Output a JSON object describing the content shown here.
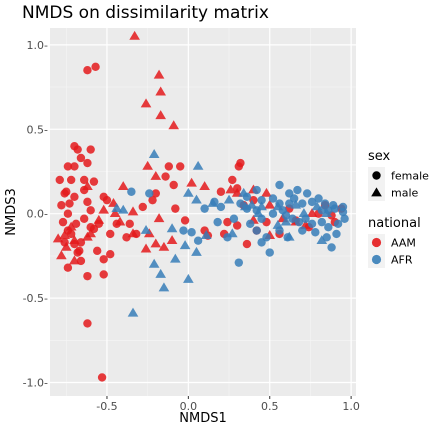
{
  "chart_data": {
    "type": "scatter",
    "title": "NMDS on dissimilarity matrix",
    "xlabel": "NMDS1",
    "ylabel": "NMDS3",
    "xlim": [
      -0.85,
      1.03
    ],
    "ylim": [
      -1.08,
      1.1
    ],
    "x_ticks": [
      -0.5,
      0.0,
      0.5,
      1.0
    ],
    "x_tick_labels": [
      "-0.5",
      "0.0",
      "0.5",
      "1.0"
    ],
    "y_ticks": [
      -1.0,
      -0.5,
      0.0,
      0.5,
      1.0
    ],
    "y_tick_labels": [
      "-1.0-",
      "-0.5-",
      "0.0-",
      "0.5-",
      "1.0-"
    ],
    "grid": true,
    "legend_position": "right",
    "legends": [
      {
        "title": "sex",
        "items": [
          {
            "label": "female",
            "shape": "circle"
          },
          {
            "label": "male",
            "shape": "triangle"
          }
        ]
      },
      {
        "title": "national",
        "items": [
          {
            "label": "AAM",
            "color": "#e41a1c"
          },
          {
            "label": "AFR",
            "color": "#377eb8"
          }
        ]
      }
    ],
    "series": [
      {
        "group": "AAM",
        "sex": "female",
        "color": "#e41a1c",
        "shape": "circle",
        "points": [
          [
            -0.53,
            -0.97
          ],
          [
            -0.62,
            -0.65
          ],
          [
            -0.52,
            -0.27
          ],
          [
            -0.56,
            -0.22
          ],
          [
            -0.68,
            -0.23
          ],
          [
            -0.66,
            -0.28
          ],
          [
            -0.72,
            -0.12
          ],
          [
            -0.76,
            -0.17
          ],
          [
            -0.74,
            -0.1
          ],
          [
            -0.77,
            -0.05
          ],
          [
            -0.74,
            0.0
          ],
          [
            -0.78,
            0.05
          ],
          [
            -0.7,
            0.1
          ],
          [
            -0.76,
            0.12
          ],
          [
            -0.72,
            0.2
          ],
          [
            -0.79,
            0.2
          ],
          [
            -0.74,
            0.28
          ],
          [
            -0.7,
            0.28
          ],
          [
            -0.66,
            0.33
          ],
          [
            -0.68,
            0.38
          ],
          [
            -0.75,
            0.13
          ],
          [
            -0.62,
            0.07
          ],
          [
            -0.64,
            0.14
          ],
          [
            -0.64,
            0.2
          ],
          [
            -0.58,
            0.19
          ],
          [
            -0.52,
            0.1
          ],
          [
            -0.5,
            0.08
          ],
          [
            -0.6,
            0.02
          ],
          [
            -0.64,
            -0.03
          ],
          [
            -0.6,
            -0.08
          ],
          [
            -0.66,
            -0.17
          ],
          [
            -0.7,
            -0.18
          ],
          [
            -0.74,
            -0.32
          ],
          [
            -0.62,
            -0.37
          ],
          [
            -0.67,
            -0.22
          ],
          [
            -0.58,
            -0.09
          ],
          [
            -0.55,
            -0.06
          ],
          [
            -0.48,
            -0.12
          ],
          [
            -0.38,
            -0.14
          ],
          [
            -0.32,
            -0.12
          ],
          [
            -0.36,
            -0.06
          ],
          [
            -0.28,
            0.04
          ],
          [
            -0.22,
            0.08
          ],
          [
            -0.2,
            0.12
          ],
          [
            -0.14,
            0.22
          ],
          [
            -0.12,
            0.28
          ],
          [
            -0.09,
            0.17
          ],
          [
            -0.05,
            0.28
          ],
          [
            -0.08,
            0.03
          ],
          [
            -0.02,
            -0.04
          ],
          [
            0.1,
            -0.1
          ],
          [
            0.12,
            -0.13
          ],
          [
            0.22,
            -0.12
          ],
          [
            0.3,
            -0.07
          ],
          [
            0.24,
            -0.05
          ],
          [
            0.34,
            0.05
          ],
          [
            0.4,
            0.08
          ],
          [
            0.3,
            0.15
          ],
          [
            0.2,
            0.13
          ],
          [
            0.27,
            0.2
          ],
          [
            0.31,
            0.28
          ],
          [
            0.32,
            0.3
          ],
          [
            0.36,
            -0.18
          ],
          [
            0.42,
            -0.1
          ],
          [
            0.48,
            -0.05
          ],
          [
            0.56,
            -0.12
          ],
          [
            0.62,
            0.03
          ],
          [
            0.66,
            -0.04
          ],
          [
            0.74,
            -0.08
          ],
          [
            0.8,
            0.0
          ],
          [
            0.84,
            0.05
          ],
          [
            0.88,
            -0.01
          ],
          [
            0.9,
            -0.05
          ],
          [
            0.94,
            0.03
          ],
          [
            -0.62,
            0.85
          ],
          [
            -0.57,
            0.87
          ],
          [
            -0.62,
            0.3
          ],
          [
            -0.7,
            0.4
          ],
          [
            -0.6,
            0.38
          ],
          [
            -0.52,
            -0.36
          ],
          [
            -0.48,
            -0.24
          ],
          [
            -0.44,
            -0.06
          ],
          [
            -0.69,
            -0.06
          ],
          [
            -0.73,
            0.06
          ]
        ]
      },
      {
        "group": "AAM",
        "sex": "male",
        "color": "#e41a1c",
        "shape": "triangle",
        "points": [
          [
            -0.33,
            1.05
          ],
          [
            -0.18,
            0.82
          ],
          [
            -0.26,
            0.65
          ],
          [
            -0.17,
            0.72
          ],
          [
            -0.17,
            0.58
          ],
          [
            -0.09,
            0.52
          ],
          [
            -0.25,
            0.28
          ],
          [
            -0.2,
            0.22
          ],
          [
            -0.4,
            0.16
          ],
          [
            -0.46,
            0.06
          ],
          [
            -0.34,
            0.01
          ],
          [
            -0.42,
            -0.05
          ],
          [
            -0.34,
            -0.12
          ],
          [
            -0.24,
            -0.12
          ],
          [
            -0.2,
            -0.18
          ],
          [
            -0.26,
            -0.21
          ],
          [
            -0.15,
            -0.2
          ],
          [
            -0.1,
            -0.16
          ],
          [
            -0.62,
            -0.14
          ],
          [
            -0.72,
            -0.08
          ],
          [
            -0.76,
            -0.13
          ],
          [
            -0.8,
            -0.15
          ],
          [
            -0.78,
            -0.25
          ],
          [
            -0.7,
            -0.16
          ],
          [
            -0.6,
            -0.12
          ],
          [
            -0.55,
            -0.04
          ],
          [
            -0.52,
            0.02
          ],
          [
            -0.62,
            0.16
          ],
          [
            -0.7,
            -0.28
          ],
          [
            0.02,
            0.18
          ],
          [
            0.1,
            0.16
          ],
          [
            0.26,
            0.14
          ],
          [
            0.3,
            0.12
          ],
          [
            0.4,
            0.14
          ],
          [
            0.48,
            0.12
          ],
          [
            0.5,
            0.05
          ],
          [
            0.4,
            -0.04
          ],
          [
            0.58,
            -0.03
          ],
          [
            0.66,
            -0.05
          ],
          [
            0.72,
            -0.07
          ],
          [
            0.76,
            0.0
          ],
          [
            0.5,
            -0.13
          ],
          [
            -0.45,
            0.0
          ],
          [
            -0.18,
            -0.03
          ],
          [
            -0.75,
            -0.2
          ]
        ]
      },
      {
        "group": "AFR",
        "sex": "female",
        "color": "#377eb8",
        "shape": "circle",
        "points": [
          [
            -0.35,
            0.13
          ],
          [
            -0.24,
            0.12
          ],
          [
            -0.03,
            -0.1
          ],
          [
            0.02,
            -0.11
          ],
          [
            0.06,
            -0.16
          ],
          [
            0.1,
            0.03
          ],
          [
            0.16,
            0.07
          ],
          [
            0.2,
            0.04
          ],
          [
            0.32,
            0.06
          ],
          [
            0.36,
            0.03
          ],
          [
            0.42,
            0.02
          ],
          [
            0.45,
            0.08
          ],
          [
            0.52,
            0.09
          ],
          [
            0.56,
            0.06
          ],
          [
            0.56,
            0.17
          ],
          [
            0.62,
            0.06
          ],
          [
            0.65,
            0.09
          ],
          [
            0.7,
            0.06
          ],
          [
            0.76,
            0.07
          ],
          [
            0.8,
            0.09
          ],
          [
            0.84,
            0.06
          ],
          [
            0.86,
            0.02
          ],
          [
            0.9,
            0.03
          ],
          [
            0.95,
            0.04
          ],
          [
            0.52,
            0.0
          ],
          [
            0.6,
            -0.01
          ],
          [
            0.64,
            -0.03
          ],
          [
            0.68,
            -0.05
          ],
          [
            0.72,
            -0.03
          ],
          [
            0.76,
            -0.06
          ],
          [
            0.82,
            -0.05
          ],
          [
            0.86,
            -0.08
          ],
          [
            0.92,
            -0.06
          ],
          [
            0.96,
            -0.03
          ],
          [
            0.42,
            -0.1
          ],
          [
            0.48,
            -0.14
          ],
          [
            0.56,
            -0.1
          ],
          [
            0.61,
            -0.14
          ],
          [
            0.7,
            -0.1
          ],
          [
            0.78,
            -0.11
          ],
          [
            0.85,
            -0.14
          ],
          [
            0.91,
            -0.12
          ],
          [
            0.88,
            -0.2
          ],
          [
            0.5,
            -0.23
          ],
          [
            0.31,
            -0.29
          ],
          [
            0.45,
            -0.17
          ],
          [
            0.38,
            -0.06
          ],
          [
            0.28,
            -0.03
          ],
          [
            0.18,
            -0.05
          ],
          [
            0.24,
            -0.14
          ],
          [
            0.36,
            0.1
          ],
          [
            0.42,
            0.14
          ],
          [
            0.73,
            0.12
          ],
          [
            0.67,
            0.14
          ],
          [
            0.62,
            0.12
          ],
          [
            0.89,
            0.05
          ],
          [
            0.95,
            0.01
          ],
          [
            0.82,
            0.02
          ],
          [
            0.58,
            0.02
          ],
          [
            0.45,
            -0.03
          ]
        ]
      },
      {
        "group": "AFR",
        "sex": "male",
        "color": "#377eb8",
        "shape": "triangle",
        "points": [
          [
            -0.34,
            -0.59
          ],
          [
            -0.15,
            -0.44
          ],
          [
            0.0,
            -0.39
          ],
          [
            -0.21,
            -0.3
          ],
          [
            -0.17,
            -0.36
          ],
          [
            -0.02,
            -0.19
          ],
          [
            0.05,
            -0.23
          ],
          [
            -0.4,
            0.02
          ],
          [
            -0.1,
            -0.09
          ],
          [
            0.06,
            0.28
          ],
          [
            0.0,
            0.12
          ],
          [
            0.05,
            0.08
          ],
          [
            0.15,
            0.06
          ],
          [
            0.35,
            0.04
          ],
          [
            0.39,
            0.05
          ],
          [
            0.45,
            0.04
          ],
          [
            0.55,
            0.04
          ],
          [
            0.66,
            0.05
          ],
          [
            0.71,
            0.0
          ],
          [
            0.79,
            0.04
          ],
          [
            0.85,
            0.0
          ],
          [
            0.55,
            -0.07
          ],
          [
            0.6,
            -0.05
          ],
          [
            0.62,
            -0.14
          ],
          [
            0.82,
            -0.16
          ],
          [
            0.43,
            0.0
          ],
          [
            -0.21,
            0.35
          ],
          [
            0.25,
            0.08
          ],
          [
            0.27,
            -0.12
          ],
          [
            0.11,
            -0.13
          ],
          [
            -0.08,
            -0.27
          ],
          [
            -0.26,
            -0.1
          ],
          [
            -0.44,
            0.03
          ],
          [
            0.34,
            0.12
          ]
        ]
      }
    ]
  }
}
